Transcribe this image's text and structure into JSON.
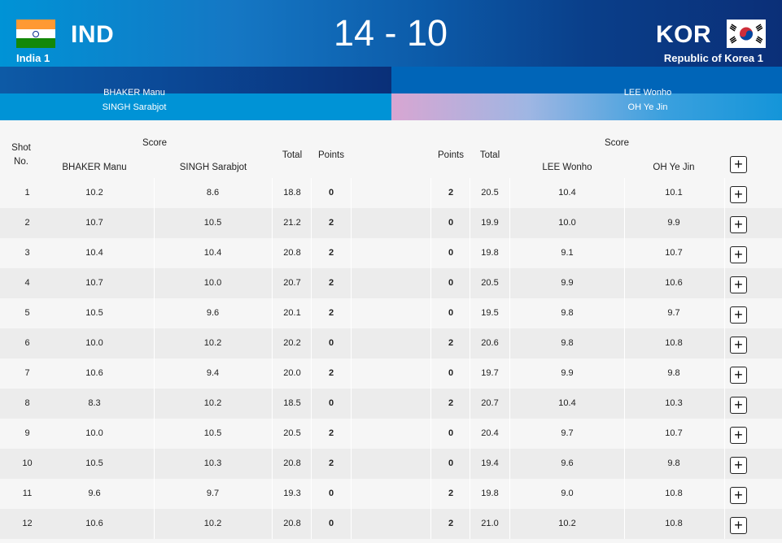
{
  "header": {
    "score": "14 - 10",
    "left": {
      "code": "IND",
      "team": "India 1",
      "flag": "india-flag"
    },
    "right": {
      "code": "KOR",
      "team": "Republic of Korea 1",
      "flag": "korea-flag"
    }
  },
  "players": {
    "left": [
      "BHAKER Manu",
      "SINGH Sarabjot"
    ],
    "right": [
      "LEE Wonho",
      "OH Ye Jin"
    ]
  },
  "table": {
    "headers": {
      "shot": "Shot",
      "no": "No.",
      "score": "Score",
      "left_p1": "BHAKER Manu",
      "left_p2": "SINGH Sarabjot",
      "total": "Total",
      "points": "Points",
      "right_points": "Points",
      "right_total": "Total",
      "right_score": "Score",
      "right_p1": "LEE Wonho",
      "right_p2": "OH Ye Jin",
      "expand": "+"
    },
    "rows": [
      {
        "shot": "1",
        "l1": "10.2",
        "l2": "8.6",
        "lt": "18.8",
        "lp": "0",
        "rp": "2",
        "rt": "20.5",
        "r1": "10.4",
        "r2": "10.1"
      },
      {
        "shot": "2",
        "l1": "10.7",
        "l2": "10.5",
        "lt": "21.2",
        "lp": "2",
        "rp": "0",
        "rt": "19.9",
        "r1": "10.0",
        "r2": "9.9"
      },
      {
        "shot": "3",
        "l1": "10.4",
        "l2": "10.4",
        "lt": "20.8",
        "lp": "2",
        "rp": "0",
        "rt": "19.8",
        "r1": "9.1",
        "r2": "10.7"
      },
      {
        "shot": "4",
        "l1": "10.7",
        "l2": "10.0",
        "lt": "20.7",
        "lp": "2",
        "rp": "0",
        "rt": "20.5",
        "r1": "9.9",
        "r2": "10.6"
      },
      {
        "shot": "5",
        "l1": "10.5",
        "l2": "9.6",
        "lt": "20.1",
        "lp": "2",
        "rp": "0",
        "rt": "19.5",
        "r1": "9.8",
        "r2": "9.7"
      },
      {
        "shot": "6",
        "l1": "10.0",
        "l2": "10.2",
        "lt": "20.2",
        "lp": "0",
        "rp": "2",
        "rt": "20.6",
        "r1": "9.8",
        "r2": "10.8"
      },
      {
        "shot": "7",
        "l1": "10.6",
        "l2": "9.4",
        "lt": "20.0",
        "lp": "2",
        "rp": "0",
        "rt": "19.7",
        "r1": "9.9",
        "r2": "9.8"
      },
      {
        "shot": "8",
        "l1": "8.3",
        "l2": "10.2",
        "lt": "18.5",
        "lp": "0",
        "rp": "2",
        "rt": "20.7",
        "r1": "10.4",
        "r2": "10.3"
      },
      {
        "shot": "9",
        "l1": "10.0",
        "l2": "10.5",
        "lt": "20.5",
        "lp": "2",
        "rp": "0",
        "rt": "20.4",
        "r1": "9.7",
        "r2": "10.7"
      },
      {
        "shot": "10",
        "l1": "10.5",
        "l2": "10.3",
        "lt": "20.8",
        "lp": "2",
        "rp": "0",
        "rt": "19.4",
        "r1": "9.6",
        "r2": "9.8"
      },
      {
        "shot": "11",
        "l1": "9.6",
        "l2": "9.7",
        "lt": "19.3",
        "lp": "0",
        "rp": "2",
        "rt": "19.8",
        "r1": "9.0",
        "r2": "10.8"
      },
      {
        "shot": "12",
        "l1": "10.6",
        "l2": "10.2",
        "lt": "20.8",
        "lp": "0",
        "rp": "2",
        "rt": "21.0",
        "r1": "10.2",
        "r2": "10.8"
      }
    ]
  }
}
